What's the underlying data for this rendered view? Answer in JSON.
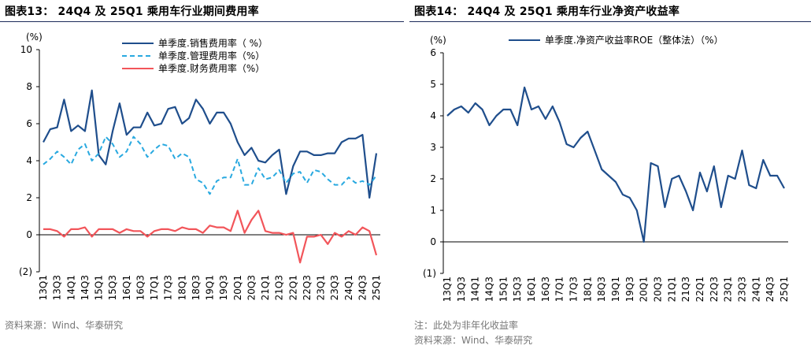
{
  "page": {
    "left_title": "图表13： 24Q4 及 25Q1 乘用车行业期间费用率",
    "right_title": "图表14： 24Q4 及 25Q1 乘用车行业净资产收益率",
    "left_source": "资料来源：Wind、华泰研究",
    "right_note": "注：此处为非年化收益率",
    "right_source": "资料来源：Wind、华泰研究"
  },
  "chart_data": [
    {
      "type": "line",
      "title": "图表13： 24Q4 及 25Q1 乘用车行业期间费用率",
      "unit_label": "(%)",
      "ylim": [
        -2,
        10
      ],
      "yticks": [
        -2,
        0,
        2,
        4,
        6,
        8,
        10
      ],
      "ytick_labels": [
        "(2)",
        "0",
        "2",
        "4",
        "6",
        "8",
        "10"
      ],
      "x": [
        "13Q1",
        "13Q2",
        "13Q3",
        "13Q4",
        "14Q1",
        "14Q2",
        "14Q3",
        "14Q4",
        "15Q1",
        "15Q2",
        "15Q3",
        "15Q4",
        "16Q1",
        "16Q2",
        "16Q3",
        "16Q4",
        "17Q1",
        "17Q2",
        "17Q3",
        "17Q4",
        "18Q1",
        "18Q2",
        "18Q3",
        "18Q4",
        "19Q1",
        "19Q2",
        "19Q3",
        "19Q4",
        "20Q1",
        "20Q2",
        "20Q3",
        "20Q4",
        "21Q1",
        "21Q2",
        "21Q3",
        "21Q4",
        "22Q1",
        "22Q2",
        "22Q3",
        "22Q4",
        "23Q1",
        "23Q2",
        "23Q3",
        "23Q4",
        "24Q1",
        "24Q2",
        "24Q3",
        "24Q4",
        "25Q1"
      ],
      "xtick_labels": [
        "13Q1",
        "13Q3",
        "14Q1",
        "14Q3",
        "15Q1",
        "15Q3",
        "16Q1",
        "16Q3",
        "17Q1",
        "17Q3",
        "18Q1",
        "18Q3",
        "19Q1",
        "19Q3",
        "20Q1",
        "20Q3",
        "21Q1",
        "21Q3",
        "22Q1",
        "22Q3",
        "23Q1",
        "23Q3",
        "24Q1",
        "24Q3",
        "25Q1"
      ],
      "grid": false,
      "legend_position": "top-right",
      "series": [
        {
          "name": "单季度.销售费用率（ %）",
          "color": "#1f4e8c",
          "style": "solid",
          "values": [
            5.0,
            5.7,
            5.8,
            7.3,
            5.6,
            5.9,
            5.6,
            7.8,
            4.3,
            3.8,
            5.6,
            7.1,
            5.4,
            5.8,
            5.8,
            6.6,
            5.9,
            6.0,
            6.8,
            6.9,
            6.0,
            6.3,
            7.3,
            6.8,
            6.0,
            6.6,
            6.6,
            6.0,
            5.0,
            4.3,
            4.7,
            4.0,
            3.9,
            4.3,
            4.6,
            2.2,
            3.7,
            4.5,
            4.5,
            4.3,
            4.3,
            4.4,
            4.4,
            5.0,
            5.2,
            5.2,
            5.4,
            2.0,
            4.4
          ]
        },
        {
          "name": "单季度.管理费用率（%）",
          "color": "#29a9e0",
          "style": "dashed",
          "values": [
            3.8,
            4.1,
            4.5,
            4.2,
            3.8,
            4.6,
            4.9,
            4.0,
            4.4,
            5.3,
            4.9,
            4.2,
            4.5,
            5.3,
            4.9,
            4.2,
            4.6,
            4.9,
            4.8,
            4.1,
            4.4,
            4.2,
            3.0,
            2.8,
            2.2,
            2.9,
            3.1,
            3.1,
            4.1,
            2.7,
            2.7,
            3.6,
            3.0,
            3.1,
            3.5,
            2.8,
            3.3,
            3.4,
            2.8,
            3.5,
            3.4,
            3.0,
            2.7,
            2.7,
            3.1,
            2.8,
            2.9,
            2.7,
            3.2
          ]
        },
        {
          "name": "单季度.财务费用率（%）",
          "color": "#f2555a",
          "style": "solid",
          "values": [
            0.3,
            0.3,
            0.2,
            -0.1,
            0.3,
            0.3,
            0.4,
            -0.1,
            0.3,
            0.3,
            0.3,
            0.1,
            0.3,
            0.2,
            0.2,
            -0.1,
            0.2,
            0.3,
            0.3,
            0.2,
            0.4,
            0.3,
            0.3,
            0.1,
            0.5,
            0.4,
            0.4,
            0.2,
            1.3,
            0.1,
            0.8,
            1.3,
            0.2,
            0.1,
            0.1,
            0.0,
            0.1,
            -1.5,
            -0.1,
            -0.1,
            0.0,
            -0.5,
            0.1,
            -0.1,
            0.2,
            0.0,
            0.4,
            0.2,
            -1.1
          ]
        }
      ]
    },
    {
      "type": "line",
      "title": "图表14： 24Q4 及 25Q1 乘用车行业净资产收益率",
      "unit_label": "(%)",
      "ylim": [
        -1,
        6
      ],
      "yticks": [
        -1,
        0,
        1,
        2,
        3,
        4,
        5,
        6
      ],
      "ytick_labels": [
        "(1)",
        "0",
        "1",
        "2",
        "3",
        "4",
        "5",
        "6"
      ],
      "x": [
        "13Q1",
        "13Q2",
        "13Q3",
        "13Q4",
        "14Q1",
        "14Q2",
        "14Q3",
        "14Q4",
        "15Q1",
        "15Q2",
        "15Q3",
        "15Q4",
        "16Q1",
        "16Q2",
        "16Q3",
        "16Q4",
        "17Q1",
        "17Q2",
        "17Q3",
        "17Q4",
        "18Q1",
        "18Q2",
        "18Q3",
        "18Q4",
        "19Q1",
        "19Q2",
        "19Q3",
        "19Q4",
        "20Q1",
        "20Q2",
        "20Q3",
        "20Q4",
        "21Q1",
        "21Q2",
        "21Q3",
        "21Q4",
        "22Q1",
        "22Q2",
        "22Q3",
        "22Q4",
        "23Q1",
        "23Q2",
        "23Q3",
        "23Q4",
        "24Q1",
        "24Q2",
        "24Q3",
        "24Q4",
        "25Q1"
      ],
      "xtick_labels": [
        "13Q1",
        "13Q3",
        "14Q1",
        "14Q3",
        "15Q1",
        "15Q3",
        "16Q1",
        "16Q3",
        "17Q1",
        "17Q3",
        "18Q1",
        "18Q3",
        "19Q1",
        "19Q3",
        "20Q1",
        "20Q3",
        "21Q1",
        "21Q3",
        "22Q1",
        "22Q3",
        "23Q1",
        "23Q3",
        "24Q1",
        "24Q3",
        "25Q1"
      ],
      "grid": false,
      "legend_position": "top-left",
      "series": [
        {
          "name": "单季度.净资产收益率ROE（整体法）（%）",
          "color": "#1f4e8c",
          "style": "solid",
          "values": [
            4.0,
            4.2,
            4.3,
            4.1,
            4.4,
            4.2,
            3.7,
            4.0,
            4.2,
            4.2,
            3.7,
            4.9,
            4.2,
            4.3,
            3.9,
            4.3,
            3.8,
            3.1,
            3.0,
            3.3,
            3.5,
            2.9,
            2.3,
            2.1,
            1.9,
            1.5,
            1.4,
            1.0,
            0.0,
            2.5,
            2.4,
            1.1,
            2.0,
            2.1,
            1.6,
            1.0,
            2.2,
            1.6,
            2.4,
            1.1,
            2.1,
            2.0,
            2.9,
            1.8,
            1.7,
            2.6,
            2.1,
            2.1,
            1.7
          ]
        }
      ]
    }
  ]
}
